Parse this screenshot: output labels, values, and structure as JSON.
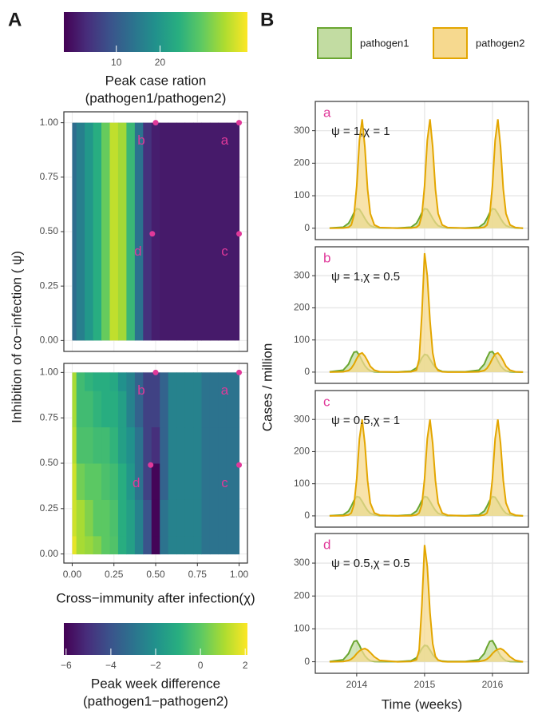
{
  "chart_data": [
    {
      "type": "heatmap",
      "panel": "A",
      "ylabel": "Inhibition of co−infection ( ψ)",
      "colorbar_position": "top",
      "colorbar_label": [
        "Peak case ration",
        "(pathogen1/pathogen2)"
      ],
      "colors": [
        "#440154",
        "#472d7b",
        "#3b528b",
        "#2c728e",
        "#21918c",
        "#28ae80",
        "#5ec962",
        "#addc30",
        "#fde725"
      ],
      "zlim": [
        -2,
        40
      ],
      "zticks": [
        10,
        20
      ],
      "x": [
        0,
        0.05,
        0.1,
        0.15,
        0.2,
        0.25,
        0.3,
        0.35,
        0.4,
        0.45,
        0.5,
        0.55,
        0.6,
        0.65,
        0.7,
        0.75,
        0.8,
        0.85,
        0.9,
        0.95,
        1
      ],
      "values": [
        13,
        16,
        20,
        24,
        30,
        36,
        34,
        26,
        14,
        4,
        1.5,
        1,
        1,
        1,
        1,
        1,
        1,
        1,
        1,
        1,
        1
      ],
      "xlim": [
        -0.05,
        1.05
      ],
      "ylim": [
        -0.05,
        1.05
      ],
      "xticks": [
        0,
        0.25,
        0.5,
        0.75,
        1
      ],
      "yticks": [
        {
          "value": 0,
          "label": "0.00"
        },
        {
          "value": 0.25,
          "label": "0.25"
        },
        {
          "value": 0.5,
          "label": "0.50"
        },
        {
          "value": 0.75,
          "label": "0.75"
        },
        {
          "value": 1,
          "label": "1.00"
        }
      ],
      "grid": true,
      "point_color": "#e0399a",
      "points": [
        {
          "label": "a",
          "x": 1,
          "y": 1
        },
        {
          "label": "b",
          "x": 0.5,
          "y": 1
        },
        {
          "label": "c",
          "x": 1,
          "y": 0.49
        },
        {
          "label": "d",
          "x": 0.48,
          "y": 0.49
        }
      ]
    },
    {
      "type": "heatmap",
      "xlabel": "Cross−immunity after infection(χ)",
      "colorbar_position": "bottom",
      "colorbar_label": [
        "Peak week difference",
        "(pathogen1−pathogen2)"
      ],
      "colors": [
        "#440154",
        "#472d7b",
        "#3b528b",
        "#2c728e",
        "#21918c",
        "#28ae80",
        "#5ec962",
        "#addc30",
        "#fde725"
      ],
      "zlim": [
        -6.1,
        2.1
      ],
      "zticks": [
        {
          "value": -6,
          "label": "−6"
        },
        {
          "value": -4,
          "label": "−4"
        },
        {
          "value": -2,
          "label": "−2"
        },
        0,
        2
      ],
      "x": [
        0,
        0.05,
        0.1,
        0.15,
        0.2,
        0.25,
        0.3,
        0.35,
        0.4,
        0.45,
        0.5,
        0.55,
        0.6,
        0.65,
        0.7,
        0.75,
        0.8,
        0.85,
        0.9,
        0.95,
        1
      ],
      "y": [
        0,
        0.2,
        0.4,
        0.6,
        0.8,
        1
      ],
      "z": [
        [
          1.8,
          1,
          0.8,
          0.5,
          0,
          -0.2,
          -1,
          -1.5,
          -2.5,
          -4,
          -6,
          -3,
          -2.5,
          -2.5,
          -2.5,
          -2.5,
          -3,
          -3,
          -3,
          -3,
          -3
        ],
        [
          1.5,
          1,
          0.5,
          0,
          0,
          -0.3,
          -1,
          -1.5,
          -2.5,
          -4,
          -6,
          -3,
          -2.5,
          -2.5,
          -2.5,
          -2.5,
          -3,
          -3,
          -3,
          -3,
          -3
        ],
        [
          1.5,
          0.3,
          0,
          0,
          -0.3,
          -0.5,
          -1,
          -1.8,
          -3,
          -4.5,
          -6,
          -3.5,
          -2.5,
          -2.5,
          -2.5,
          -2.5,
          -3,
          -3,
          -3,
          -3,
          -3
        ],
        [
          1.2,
          -0.3,
          -0.3,
          -0.5,
          -0.5,
          -0.8,
          -1.5,
          -2,
          -3,
          -4.5,
          -5,
          -3.5,
          -2.5,
          -2.5,
          -2.5,
          -2.5,
          -3,
          -3,
          -3,
          -3,
          -3
        ],
        [
          1,
          -0.5,
          -0.5,
          -0.8,
          -1,
          -1,
          -1.5,
          -2.5,
          -3.5,
          -4.5,
          -4.5,
          -3.5,
          -2.5,
          -2.5,
          -2.5,
          -2.5,
          -3,
          -3,
          -3,
          -3,
          -3
        ],
        [
          1,
          -0.5,
          -0.8,
          -1,
          -1,
          -1.2,
          -2,
          -2.5,
          -3.5,
          -4.5,
          -4.5,
          -3.5,
          -2.5,
          -2.5,
          -2.5,
          -2.5,
          -3,
          -3,
          -3,
          -3,
          -3
        ]
      ],
      "xlim": [
        -0.05,
        1.05
      ],
      "ylim": [
        -0.05,
        1.05
      ],
      "xticks": [
        {
          "value": 0,
          "label": "0.00"
        },
        {
          "value": 0.25,
          "label": "0.25"
        },
        {
          "value": 0.5,
          "label": "0.50"
        },
        {
          "value": 0.75,
          "label": "0.75"
        },
        {
          "value": 1,
          "label": "1.00"
        }
      ],
      "yticks": [
        {
          "value": 0,
          "label": "0.00"
        },
        {
          "value": 0.25,
          "label": "0.25"
        },
        {
          "value": 0.5,
          "label": "0.50"
        },
        {
          "value": 0.75,
          "label": "0.75"
        },
        {
          "value": 1,
          "label": "1.00"
        }
      ],
      "grid": true,
      "point_color": "#e0399a",
      "points": [
        {
          "label": "a",
          "x": 1,
          "y": 1
        },
        {
          "label": "b",
          "x": 0.5,
          "y": 1
        },
        {
          "label": "c",
          "x": 1,
          "y": 0.49
        },
        {
          "label": "d",
          "x": 0.47,
          "y": 0.49
        }
      ]
    },
    {
      "type": "area",
      "panel": "B",
      "label": "a",
      "annotation": "ψ = 1,χ = 1",
      "ylabel": "Cases / million",
      "legend": "top",
      "label_color": "#e0399a",
      "x": [
        2013.6,
        2013.8,
        2013.88,
        2013.92,
        2013.96,
        2014,
        2014.04,
        2014.08,
        2014.12,
        2014.16,
        2014.2,
        2014.26,
        2014.34,
        2014.6,
        2014.8,
        2014.88,
        2014.92,
        2014.96,
        2015,
        2015.04,
        2015.08,
        2015.12,
        2015.16,
        2015.2,
        2015.26,
        2015.34,
        2015.6,
        2015.8,
        2015.88,
        2015.92,
        2015.96,
        2016,
        2016.04,
        2016.08,
        2016.12,
        2016.16,
        2016.2,
        2016.26,
        2016.34,
        2016.45
      ],
      "series": [
        {
          "name": "pathogen1",
          "color": "#6aa631",
          "fill": "#c2dca2",
          "values": [
            0.5,
            3,
            15,
            30,
            48,
            60,
            58,
            45,
            30,
            17,
            8,
            3,
            1,
            0.5,
            3,
            15,
            30,
            48,
            60,
            58,
            45,
            30,
            17,
            8,
            3,
            1,
            0.5,
            3,
            15,
            30,
            48,
            60,
            58,
            45,
            30,
            17,
            8,
            3,
            1,
            0
          ]
        },
        {
          "name": "pathogen2",
          "color": "#e3a600",
          "fill": "#f6d98f",
          "values": [
            0,
            0.5,
            3,
            10,
            40,
            130,
            270,
            335,
            250,
            120,
            45,
            10,
            2,
            0,
            0.5,
            3,
            10,
            40,
            130,
            270,
            335,
            250,
            120,
            45,
            10,
            2,
            0,
            0.5,
            3,
            10,
            40,
            130,
            270,
            335,
            250,
            120,
            45,
            10,
            2,
            0
          ]
        }
      ],
      "xlim": [
        2013.39,
        2016.53
      ],
      "ylim": [
        -35,
        390
      ],
      "xticks": [
        2014,
        2015,
        2016
      ],
      "yticks": [
        0,
        100,
        200,
        300
      ],
      "grid": true
    },
    {
      "type": "area",
      "label": "b",
      "annotation": "ψ = 1,χ = 0.5",
      "label_color": "#e0399a",
      "x": [
        2013.6,
        2013.8,
        2013.88,
        2013.92,
        2013.96,
        2014,
        2014.04,
        2014.08,
        2014.12,
        2014.16,
        2014.2,
        2014.26,
        2014.34,
        2014.6,
        2014.8,
        2014.88,
        2014.92,
        2014.96,
        2015,
        2015.04,
        2015.08,
        2015.12,
        2015.16,
        2015.2,
        2015.26,
        2015.34,
        2015.6,
        2015.8,
        2015.88,
        2015.92,
        2015.96,
        2016,
        2016.04,
        2016.08,
        2016.12,
        2016.16,
        2016.2,
        2016.26,
        2016.34,
        2016.45
      ],
      "series": [
        {
          "name": "pathogen1",
          "color": "#6aa631",
          "fill": "#c2dca2",
          "values": [
            1,
            6,
            25,
            45,
            62,
            64,
            52,
            35,
            20,
            10,
            4,
            1,
            0.5,
            0.5,
            3,
            13,
            27,
            44,
            55,
            53,
            40,
            26,
            15,
            7,
            2,
            1,
            1,
            6,
            25,
            45,
            62,
            64,
            52,
            35,
            20,
            10,
            4,
            1,
            0.5,
            0
          ]
        },
        {
          "name": "pathogen2",
          "color": "#e3a600",
          "fill": "#f6d98f",
          "values": [
            0,
            1,
            5,
            12,
            25,
            42,
            56,
            60,
            50,
            35,
            18,
            6,
            1,
            0,
            1,
            6,
            40,
            180,
            370,
            300,
            160,
            60,
            18,
            5,
            1,
            0,
            0,
            1,
            5,
            12,
            25,
            42,
            56,
            60,
            50,
            35,
            18,
            6,
            1,
            0
          ]
        }
      ],
      "xlim": [
        2013.39,
        2016.53
      ],
      "ylim": [
        -35,
        390
      ],
      "xticks": [
        2014,
        2015,
        2016
      ],
      "yticks": [
        0,
        100,
        200,
        300
      ],
      "grid": true
    },
    {
      "type": "area",
      "label": "c",
      "annotation": "ψ = 0.5,χ = 1",
      "label_color": "#e0399a",
      "x": [
        2013.6,
        2013.8,
        2013.88,
        2013.92,
        2013.96,
        2014,
        2014.04,
        2014.08,
        2014.12,
        2014.16,
        2014.2,
        2014.26,
        2014.34,
        2014.6,
        2014.8,
        2014.88,
        2014.92,
        2014.96,
        2015,
        2015.04,
        2015.08,
        2015.12,
        2015.16,
        2015.2,
        2015.26,
        2015.34,
        2015.6,
        2015.8,
        2015.88,
        2015.92,
        2015.96,
        2016,
        2016.04,
        2016.08,
        2016.12,
        2016.16,
        2016.2,
        2016.26,
        2016.34,
        2016.45
      ],
      "series": [
        {
          "name": "pathogen1",
          "color": "#6aa631",
          "fill": "#c2dca2",
          "values": [
            0.5,
            3,
            15,
            30,
            48,
            60,
            58,
            45,
            30,
            17,
            8,
            3,
            1,
            0.5,
            3,
            15,
            30,
            48,
            60,
            58,
            45,
            30,
            17,
            8,
            3,
            1,
            0.5,
            3,
            15,
            30,
            48,
            60,
            58,
            45,
            30,
            17,
            8,
            3,
            1,
            0
          ]
        },
        {
          "name": "pathogen2",
          "color": "#e3a600",
          "fill": "#f6d98f",
          "values": [
            0,
            0.5,
            3,
            9,
            35,
            115,
            240,
            300,
            225,
            110,
            40,
            9,
            2,
            0,
            0.5,
            3,
            9,
            35,
            115,
            240,
            300,
            225,
            110,
            40,
            9,
            2,
            0,
            0.5,
            3,
            9,
            35,
            115,
            240,
            300,
            225,
            110,
            40,
            9,
            2,
            0
          ]
        }
      ],
      "xlim": [
        2013.39,
        2016.53
      ],
      "ylim": [
        -35,
        390
      ],
      "xticks": [
        2014,
        2015,
        2016
      ],
      "yticks": [
        0,
        100,
        200,
        300
      ],
      "grid": true
    },
    {
      "type": "area",
      "label": "d",
      "annotation": "ψ = 0.5,χ = 0.5",
      "xlabel": "Time (weeks)",
      "label_color": "#e0399a",
      "x": [
        2013.6,
        2013.8,
        2013.88,
        2013.92,
        2013.96,
        2014,
        2014.04,
        2014.08,
        2014.12,
        2014.16,
        2014.2,
        2014.26,
        2014.34,
        2014.6,
        2014.8,
        2014.88,
        2014.92,
        2014.96,
        2015,
        2015.04,
        2015.08,
        2015.12,
        2015.16,
        2015.2,
        2015.26,
        2015.34,
        2015.6,
        2015.8,
        2015.88,
        2015.92,
        2015.96,
        2016,
        2016.04,
        2016.08,
        2016.12,
        2016.16,
        2016.2,
        2016.26,
        2016.34,
        2016.45
      ],
      "series": [
        {
          "name": "pathogen1",
          "color": "#6aa631",
          "fill": "#c2dca2",
          "values": [
            1,
            6,
            25,
            45,
            62,
            64,
            50,
            32,
            18,
            9,
            3,
            1,
            0.5,
            0.5,
            3,
            12,
            25,
            40,
            50,
            48,
            36,
            22,
            12,
            5,
            2,
            1,
            1,
            6,
            25,
            45,
            62,
            64,
            50,
            32,
            18,
            9,
            3,
            1,
            0.5,
            0
          ]
        },
        {
          "name": "pathogen2",
          "color": "#e3a600",
          "fill": "#f6d98f",
          "values": [
            0,
            1,
            4,
            8,
            15,
            25,
            33,
            38,
            40,
            36,
            28,
            15,
            4,
            0,
            1,
            6,
            36,
            170,
            355,
            290,
            150,
            55,
            16,
            5,
            1,
            0,
            0,
            1,
            4,
            8,
            15,
            25,
            33,
            38,
            40,
            36,
            28,
            15,
            4,
            0
          ]
        }
      ],
      "xlim": [
        2013.39,
        2016.53
      ],
      "ylim": [
        -35,
        390
      ],
      "xticks": [
        2014,
        2015,
        2016
      ],
      "yticks": [
        0,
        100,
        200,
        300
      ],
      "grid": true
    }
  ]
}
